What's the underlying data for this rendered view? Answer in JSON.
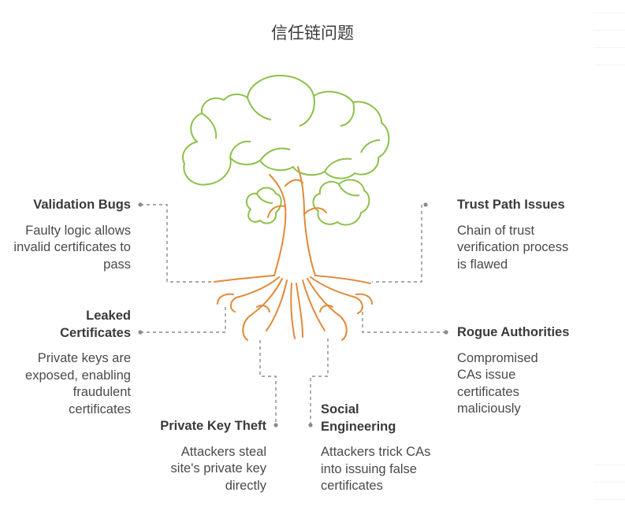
{
  "title": "信任链问题",
  "colors": {
    "canopy": "#8ec04a",
    "trunk": "#e08a3a",
    "connector": "#8a8a8a",
    "text": "#484848"
  },
  "items": [
    {
      "id": "validation-bugs",
      "side": "left",
      "title": "Validation Bugs",
      "description": "Faulty logic allows invalid certificates to pass"
    },
    {
      "id": "leaked-certificates",
      "side": "left",
      "title": "Leaked Certificates",
      "description": "Private keys are exposed, enabling fraudulent certificates"
    },
    {
      "id": "private-key-theft",
      "side": "left",
      "title": "Private Key Theft",
      "description": "Attackers steal site's private key directly"
    },
    {
      "id": "trust-path-issues",
      "side": "right",
      "title": "Trust Path Issues",
      "description": "Chain of trust verification process is flawed"
    },
    {
      "id": "rogue-authorities",
      "side": "right",
      "title": "Rogue Authorities",
      "description": "Compromised CAs issue certificates maliciously"
    },
    {
      "id": "social-engineering",
      "side": "right",
      "title": "Social Engineering",
      "description": "Attackers trick CAs into issuing false certificates"
    }
  ]
}
